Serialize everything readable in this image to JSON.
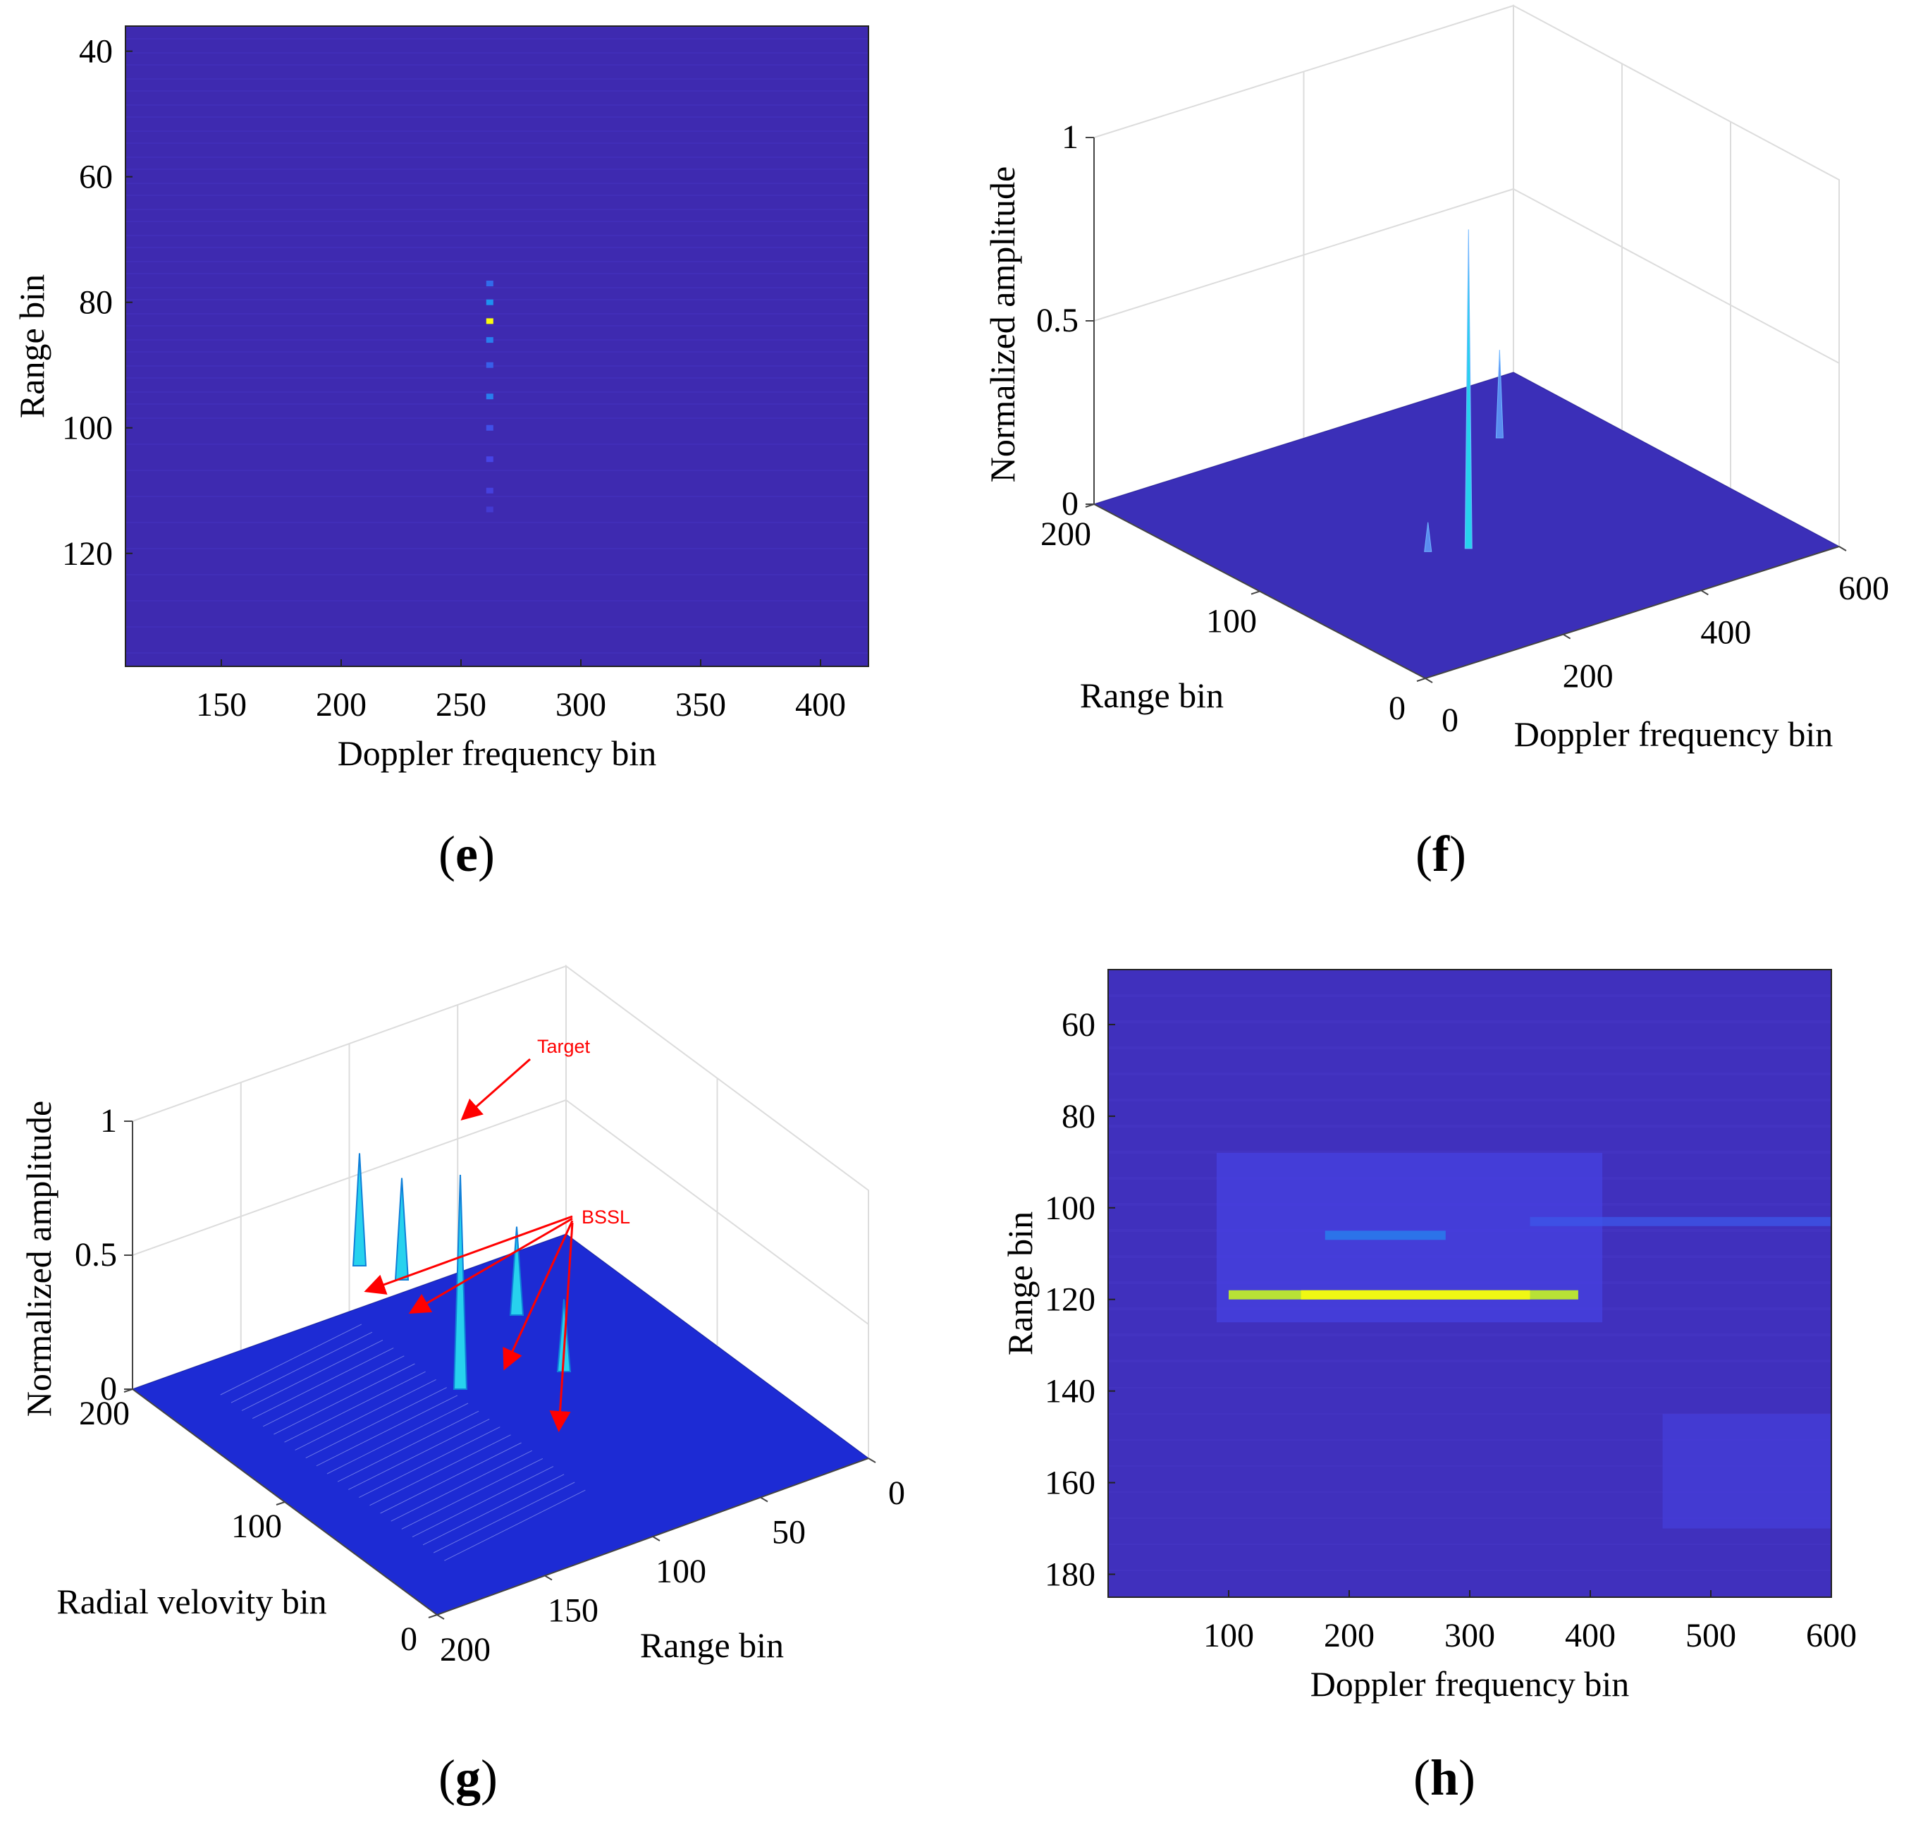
{
  "colors": {
    "background_low": "#3d26a8",
    "mesh_blue": "#1d2bd4",
    "peak_cyan": "#27d2ee",
    "peak_yellow": "#f9fb0e",
    "annotation": "#ff0000"
  },
  "captions": {
    "e": "e",
    "f": "f",
    "g": "g",
    "h": "h"
  },
  "chart_data": [
    {
      "id": "e",
      "type": "heatmap",
      "xlabel": "Doppler frequency bin",
      "ylabel": "Range bin",
      "xlim": [
        110,
        420
      ],
      "ylim": [
        138,
        36
      ],
      "xticks": [
        150,
        200,
        250,
        300,
        350,
        400
      ],
      "yticks": [
        40,
        60,
        80,
        100,
        120
      ],
      "background_level": 0.02,
      "cells": [
        {
          "x": 262,
          "y": 83,
          "value": 1.0
        },
        {
          "x": 262,
          "y": 80,
          "value": 0.35
        },
        {
          "x": 262,
          "y": 86,
          "value": 0.3
        },
        {
          "x": 262,
          "y": 77,
          "value": 0.25
        },
        {
          "x": 262,
          "y": 90,
          "value": 0.22
        },
        {
          "x": 262,
          "y": 95,
          "value": 0.3
        },
        {
          "x": 262,
          "y": 100,
          "value": 0.18
        },
        {
          "x": 262,
          "y": 105,
          "value": 0.15
        },
        {
          "x": 262,
          "y": 110,
          "value": 0.13
        },
        {
          "x": 262,
          "y": 113,
          "value": 0.1
        }
      ]
    },
    {
      "id": "f",
      "type": "surface3d",
      "xlabel": "Doppler frequency bin",
      "ylabel": "Range bin",
      "zlabel": "Normalized amplitude",
      "xlim": [
        0,
        600
      ],
      "ylim": [
        0,
        200
      ],
      "zlim": [
        0,
        1
      ],
      "xticks": [
        0,
        200,
        400,
        600
      ],
      "yticks": [
        0,
        100,
        200
      ],
      "zticks": [
        0,
        0.5,
        1
      ],
      "peaks": [
        {
          "x": 262,
          "y": 83,
          "z": 0.87
        },
        {
          "x": 220,
          "y": 90,
          "z": 0.08
        },
        {
          "x": 480,
          "y": 155,
          "z": 0.24
        }
      ]
    },
    {
      "id": "g",
      "type": "surface3d",
      "xlabel": "Range bin",
      "ylabel": "Radial velovity bin",
      "zlabel": "Normalized amplitude",
      "xlim": [
        0,
        200
      ],
      "ylim": [
        0,
        200
      ],
      "zlim": [
        0,
        1
      ],
      "xticks": [
        0,
        50,
        100,
        150,
        200
      ],
      "yticks": [
        0,
        100,
        200
      ],
      "zticks": [
        0,
        0.5,
        1
      ],
      "peaks": [
        {
          "label": "Target",
          "z": 0.8
        },
        {
          "label": "BSSL",
          "z": 0.42
        },
        {
          "label": "BSSL",
          "z": 0.38
        },
        {
          "label": "BSSL",
          "z": 0.33
        },
        {
          "label": "BSSL",
          "z": 0.27
        }
      ],
      "annotations": [
        "Target",
        "BSSL"
      ]
    },
    {
      "id": "h",
      "type": "heatmap",
      "xlabel": "Doppler frequency bin",
      "ylabel": "Range bin",
      "xlim": [
        0,
        600
      ],
      "ylim": [
        185,
        48
      ],
      "xticks": [
        100,
        200,
        300,
        400,
        500,
        600
      ],
      "yticks": [
        60,
        80,
        100,
        120,
        140,
        160,
        180
      ],
      "background_level": 0.05,
      "bands": [
        {
          "x0": 90,
          "x1": 410,
          "y0": 88,
          "y1": 125,
          "value": 0.14
        },
        {
          "x0": 100,
          "x1": 390,
          "y0": 118,
          "y1": 120,
          "value": 0.85
        },
        {
          "x0": 160,
          "x1": 350,
          "y0": 118,
          "y1": 120,
          "value": 0.98
        },
        {
          "x0": 180,
          "x1": 280,
          "y0": 105,
          "y1": 107,
          "value": 0.32
        },
        {
          "x0": 350,
          "x1": 600,
          "y0": 102,
          "y1": 104,
          "value": 0.2
        },
        {
          "x0": 460,
          "x1": 600,
          "y0": 145,
          "y1": 170,
          "value": 0.12
        }
      ]
    }
  ]
}
